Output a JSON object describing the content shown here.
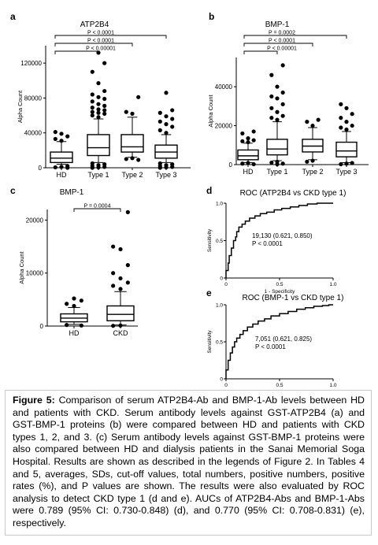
{
  "chart_data": [
    {
      "id": "a",
      "type": "box",
      "panel_letter": "a",
      "title": "ATP2B4",
      "ylabel": "Alpha Count",
      "ylim": [
        0,
        140000
      ],
      "yticks": [
        0,
        40000,
        80000,
        120000
      ],
      "ytick_labels": [
        "0",
        "40000",
        "80000",
        "120000"
      ],
      "categories": [
        "HD",
        "Type 1",
        "Type 2",
        "Type 3"
      ],
      "boxes": [
        {
          "q1": 6000,
          "median": 11000,
          "q3": 18000,
          "lo": 4000,
          "hi": 30000,
          "out_hi": [
            31000,
            33000,
            36000,
            39000,
            41000
          ],
          "out_lo": [
            2000,
            1000,
            500,
            0
          ]
        },
        {
          "q1": 14000,
          "median": 23000,
          "q3": 38000,
          "lo": 6000,
          "hi": 56000,
          "out_hi": [
            58000,
            60000,
            62000,
            63000,
            64000,
            66000,
            67000,
            69000,
            71000,
            73000,
            76000,
            79000,
            81000,
            84000,
            88000,
            97000,
            110000,
            120000,
            132000
          ],
          "out_lo": [
            5000,
            4000,
            3000,
            2000,
            1000,
            500,
            0
          ]
        },
        {
          "q1": 18000,
          "median": 24000,
          "q3": 38000,
          "lo": 12000,
          "hi": 58000,
          "out_hi": [
            62000,
            64000,
            81000
          ],
          "out_lo": [
            11000,
            10000,
            9000
          ]
        },
        {
          "q1": 11000,
          "median": 18000,
          "q3": 26000,
          "lo": 6000,
          "hi": 38000,
          "out_hi": [
            40000,
            43000,
            47000,
            50000,
            53000,
            56000,
            59000,
            63000,
            66000,
            86000
          ],
          "out_lo": [
            5000,
            4000,
            3000,
            2000,
            1000,
            500,
            0
          ]
        }
      ],
      "brackets": [
        {
          "from": 0,
          "to": 3,
          "label": "P < 0.0001"
        },
        {
          "from": 0,
          "to": 2,
          "label": "P < 0.0001"
        },
        {
          "from": 0,
          "to": 1,
          "label": "P < 0.00001"
        }
      ]
    },
    {
      "id": "b",
      "type": "box",
      "panel_letter": "b",
      "title": "BMP-1",
      "ylabel": "Alpha Count",
      "ylim": [
        0,
        55000
      ],
      "yticks": [
        0,
        20000,
        40000
      ],
      "ytick_labels": [
        "0",
        "20000",
        "40000"
      ],
      "categories": [
        "HD",
        "Type 1",
        "Type 2",
        "Type 3"
      ],
      "boxes": [
        {
          "q1": 2500,
          "median": 4500,
          "q3": 7500,
          "lo": 1000,
          "hi": 11000,
          "out_hi": [
            11500,
            12000,
            12500,
            13500,
            16000,
            17000
          ],
          "out_lo": [
            800,
            500,
            200
          ]
        },
        {
          "q1": 5000,
          "median": 8000,
          "q3": 13000,
          "lo": 2000,
          "hi": 22000,
          "out_hi": [
            23000,
            24000,
            25000,
            27000,
            29000,
            31000,
            34000,
            35000,
            37000,
            40000,
            46000,
            51000
          ],
          "out_lo": [
            1500,
            1000,
            500,
            200
          ]
        },
        {
          "q1": 6500,
          "median": 9500,
          "q3": 13000,
          "lo": 2500,
          "hi": 19000,
          "out_hi": [
            20000,
            22000,
            23000
          ],
          "out_lo": [
            2000,
            1500
          ]
        },
        {
          "q1": 4000,
          "median": 7000,
          "q3": 11500,
          "lo": 1000,
          "hi": 17000,
          "out_hi": [
            18000,
            19000,
            20000,
            22000,
            24000,
            26000,
            29000,
            31000
          ],
          "out_lo": [
            800,
            500,
            200
          ]
        }
      ],
      "brackets": [
        {
          "from": 0,
          "to": 3,
          "label": "P = 0.0002"
        },
        {
          "from": 0,
          "to": 2,
          "label": "P < 0.0001"
        },
        {
          "from": 0,
          "to": 1,
          "label": "P < 0.00001"
        }
      ]
    },
    {
      "id": "c",
      "type": "box",
      "panel_letter": "c",
      "title": "BMP-1",
      "ylabel": "Alpha Count",
      "ylim": [
        0,
        22000
      ],
      "yticks": [
        0,
        10000,
        20000
      ],
      "ytick_labels": [
        "0",
        "10000",
        "20000"
      ],
      "categories": [
        "HD",
        "CKD"
      ],
      "boxes": [
        {
          "q1": 800,
          "median": 1500,
          "q3": 2300,
          "lo": 300,
          "hi": 3500,
          "out_hi": [
            3800,
            4200,
            4800,
            5200
          ],
          "out_lo": [
            200,
            100
          ]
        },
        {
          "q1": 1000,
          "median": 2200,
          "q3": 3800,
          "lo": 200,
          "hi": 6500,
          "out_hi": [
            7000,
            7600,
            8200,
            9000,
            10000,
            11500,
            14500,
            15000,
            21500
          ],
          "out_lo": [
            100,
            50
          ]
        }
      ],
      "brackets": [
        {
          "from": 0,
          "to": 1,
          "label": "P = 0.0004"
        }
      ]
    },
    {
      "id": "d",
      "type": "line",
      "panel_letter": "d",
      "title": "ROC (ATP2B4 vs CKD type 1)",
      "xlabel": "1 - Specificity",
      "ylabel": "Sensitivity",
      "xlim": [
        0,
        1
      ],
      "ylim": [
        0,
        1
      ],
      "xtick_labels": [
        "0",
        "0.5",
        "1.0"
      ],
      "ytick_labels": [
        "0",
        "0.5",
        "1.0"
      ],
      "x": [
        0,
        0.02,
        0.03,
        0.05,
        0.07,
        0.09,
        0.1,
        0.12,
        0.15,
        0.18,
        0.22,
        0.27,
        0.32,
        0.38,
        0.45,
        0.52,
        0.6,
        0.68,
        0.76,
        0.85,
        0.92,
        1.0
      ],
      "y": [
        0,
        0.1,
        0.2,
        0.3,
        0.4,
        0.5,
        0.55,
        0.62,
        0.68,
        0.72,
        0.76,
        0.8,
        0.83,
        0.86,
        0.88,
        0.91,
        0.93,
        0.95,
        0.97,
        0.99,
        1.0,
        1.0
      ],
      "annotation_line1": "19,130 (0.621, 0.850)",
      "annotation_line2": "P < 0.0001"
    },
    {
      "id": "e",
      "type": "line",
      "panel_letter": "e",
      "title": "ROC (BMP-1 vs CKD type 1)",
      "xlabel": "1 - Specificity",
      "ylabel": "Sensitivity",
      "xlim": [
        0,
        1
      ],
      "ylim": [
        0,
        1
      ],
      "xtick_labels": [
        "0",
        "0.5",
        "1.0"
      ],
      "ytick_labels": [
        "0",
        "0.5",
        "1.0"
      ],
      "x": [
        0,
        0.02,
        0.04,
        0.06,
        0.08,
        0.1,
        0.13,
        0.16,
        0.2,
        0.25,
        0.3,
        0.36,
        0.42,
        0.5,
        0.58,
        0.66,
        0.74,
        0.82,
        0.9,
        0.96,
        1.0
      ],
      "y": [
        0,
        0.12,
        0.25,
        0.35,
        0.43,
        0.5,
        0.55,
        0.6,
        0.65,
        0.7,
        0.74,
        0.78,
        0.81,
        0.85,
        0.88,
        0.91,
        0.94,
        0.96,
        0.98,
        0.99,
        1.0
      ],
      "annotation_line1": "7,051 (0.621, 0.825)",
      "annotation_line2": "P < 0.0001"
    }
  ],
  "caption": {
    "label": "Figure 5:",
    "text": "Comparison of serum ATP2B4-Ab and BMP-1-Ab levels between HD and patients with CKD. Serum antibody levels against GST-ATP2B4 (a) and GST-BMP-1 proteins (b) were compared between HD and patients with CKD types 1, 2, and 3. (c) Serum antibody levels against GST-BMP-1 proteins were also compared between HD and dialysis patients in the Sanai Memorial Soga Hospital. Results are shown as described in the legends of Figure 2. In Tables 4 and 5, averages, SDs, cut-off values, total numbers, positive numbers, positive rates (%), and P values are shown. The results were also evaluated by ROC analysis to detect CKD type 1 (d and e). AUCs of ATP2B4-Abs and BMP-1-Abs were 0.789 (95% CI: 0.730-0.848) (d), and 0.770 (95% CI: 0.708-0.831) (e), respectively."
  }
}
